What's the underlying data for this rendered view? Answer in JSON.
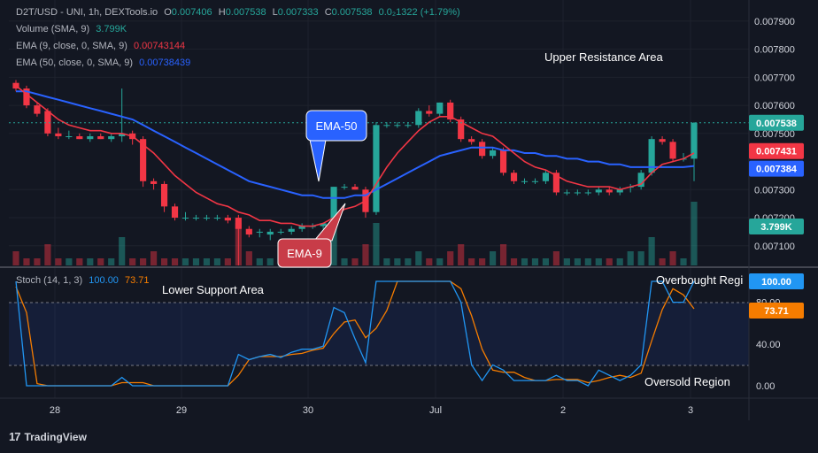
{
  "header": {
    "symbol": "D2T/USD - UNI, 1h, DEXTools.io",
    "o_label": "O",
    "o": "0.007406",
    "h_label": "H",
    "h": "0.007538",
    "l_label": "L",
    "l": "0.007333",
    "c_label": "C",
    "c": "0.007538",
    "change": "0.0₂1322 (+1.79%)"
  },
  "indicators": {
    "volume": {
      "label": "Volume (SMA, 9)",
      "value": "3.799K"
    },
    "ema9": {
      "label": "EMA (9, close, 0, SMA, 9)",
      "value": "0.00743144"
    },
    "ema50": {
      "label": "EMA (50, close, 0, SMA, 9)",
      "value": "0.00738439"
    }
  },
  "stoch": {
    "label": "Stoch (14, 1, 3)",
    "k": "100.00",
    "d": "73.71"
  },
  "annotations": {
    "upper": "Upper Resistance Area",
    "lower": "Lower Support Area",
    "overbought": "Overbought Regi",
    "oversold": "Oversold Region",
    "ema50_callout": "EMA-50",
    "ema9_callout": "EMA-9"
  },
  "colors": {
    "background": "#131722",
    "up": "#26a69a",
    "down": "#f23645",
    "ema9": "#f23645",
    "ema50": "#2962ff",
    "stoch_k": "#2196f3",
    "stoch_d": "#f57c00",
    "tag_price": "#26a69a",
    "tag_ema9": "#f23645",
    "tag_ema50": "#2962ff",
    "tag_volume": "#26a69a"
  },
  "brand": "TradingView",
  "chart_data": [
    {
      "type": "candlestick",
      "x_labels": [
        "28",
        "29",
        "30",
        "Jul",
        "2",
        "3"
      ],
      "y_ticks": [
        "0.007900",
        "0.007800",
        "0.007700",
        "0.007600",
        "0.007500",
        "0.007300",
        "0.007200",
        "0.007100"
      ],
      "y_range": [
        0.00703,
        0.00795
      ],
      "price_tags": {
        "last": "0.007538",
        "ema9": "0.007431",
        "ema50": "0.007384",
        "volume": "3.799K"
      },
      "candles": [
        {
          "o": 0.00768,
          "h": 0.00769,
          "l": 0.00765,
          "c": 0.00766
        },
        {
          "o": 0.00766,
          "h": 0.00767,
          "l": 0.00759,
          "c": 0.0076
        },
        {
          "o": 0.0076,
          "h": 0.00761,
          "l": 0.00756,
          "c": 0.00757
        },
        {
          "o": 0.00758,
          "h": 0.00759,
          "l": 0.00749,
          "c": 0.0075
        },
        {
          "o": 0.0075,
          "h": 0.00752,
          "l": 0.00748,
          "c": 0.00749
        },
        {
          "o": 0.00749,
          "h": 0.00751,
          "l": 0.00748,
          "c": 0.00749
        },
        {
          "o": 0.00749,
          "h": 0.0075,
          "l": 0.00748,
          "c": 0.00748
        },
        {
          "o": 0.00748,
          "h": 0.0075,
          "l": 0.00747,
          "c": 0.00749
        },
        {
          "o": 0.00749,
          "h": 0.0075,
          "l": 0.00748,
          "c": 0.00748
        },
        {
          "o": 0.00748,
          "h": 0.0075,
          "l": 0.00747,
          "c": 0.00749
        },
        {
          "o": 0.00749,
          "h": 0.00766,
          "l": 0.00747,
          "c": 0.0075
        },
        {
          "o": 0.0075,
          "h": 0.00751,
          "l": 0.00746,
          "c": 0.00748
        },
        {
          "o": 0.00748,
          "h": 0.00749,
          "l": 0.00731,
          "c": 0.00733
        },
        {
          "o": 0.00733,
          "h": 0.00734,
          "l": 0.0073,
          "c": 0.00732
        },
        {
          "o": 0.00732,
          "h": 0.00733,
          "l": 0.00722,
          "c": 0.00724
        },
        {
          "o": 0.00724,
          "h": 0.00725,
          "l": 0.00719,
          "c": 0.0072
        },
        {
          "o": 0.0072,
          "h": 0.00722,
          "l": 0.00719,
          "c": 0.0072
        },
        {
          "o": 0.0072,
          "h": 0.00721,
          "l": 0.00719,
          "c": 0.0072
        },
        {
          "o": 0.0072,
          "h": 0.00721,
          "l": 0.00719,
          "c": 0.0072
        },
        {
          "o": 0.0072,
          "h": 0.00721,
          "l": 0.00719,
          "c": 0.0072
        },
        {
          "o": 0.0072,
          "h": 0.00721,
          "l": 0.00718,
          "c": 0.00719
        },
        {
          "o": 0.0072,
          "h": 0.00721,
          "l": 0.00703,
          "c": 0.00716
        },
        {
          "o": 0.00716,
          "h": 0.00717,
          "l": 0.00713,
          "c": 0.00714
        },
        {
          "o": 0.00715,
          "h": 0.00716,
          "l": 0.00713,
          "c": 0.00715
        },
        {
          "o": 0.00714,
          "h": 0.00716,
          "l": 0.00712,
          "c": 0.00715
        },
        {
          "o": 0.00715,
          "h": 0.00716,
          "l": 0.00714,
          "c": 0.00715
        },
        {
          "o": 0.00715,
          "h": 0.00717,
          "l": 0.00714,
          "c": 0.00716
        },
        {
          "o": 0.00716,
          "h": 0.00718,
          "l": 0.00715,
          "c": 0.00717
        },
        {
          "o": 0.00717,
          "h": 0.00718,
          "l": 0.00716,
          "c": 0.00717
        },
        {
          "o": 0.00717,
          "h": 0.00718,
          "l": 0.00716,
          "c": 0.00718
        },
        {
          "o": 0.00718,
          "h": 0.00731,
          "l": 0.00717,
          "c": 0.00731
        },
        {
          "o": 0.00731,
          "h": 0.00732,
          "l": 0.0073,
          "c": 0.00731
        },
        {
          "o": 0.00731,
          "h": 0.00732,
          "l": 0.0073,
          "c": 0.0073
        },
        {
          "o": 0.0073,
          "h": 0.00731,
          "l": 0.0072,
          "c": 0.00722
        },
        {
          "o": 0.00722,
          "h": 0.00754,
          "l": 0.00721,
          "c": 0.00753
        },
        {
          "o": 0.00753,
          "h": 0.00754,
          "l": 0.00752,
          "c": 0.00753
        },
        {
          "o": 0.00753,
          "h": 0.00754,
          "l": 0.00752,
          "c": 0.00753
        },
        {
          "o": 0.00753,
          "h": 0.00754,
          "l": 0.00752,
          "c": 0.00753
        },
        {
          "o": 0.00753,
          "h": 0.00759,
          "l": 0.00752,
          "c": 0.00758
        },
        {
          "o": 0.00758,
          "h": 0.0076,
          "l": 0.00756,
          "c": 0.00757
        },
        {
          "o": 0.00757,
          "h": 0.00761,
          "l": 0.00756,
          "c": 0.00761
        },
        {
          "o": 0.00761,
          "h": 0.00762,
          "l": 0.00754,
          "c": 0.00755
        },
        {
          "o": 0.00755,
          "h": 0.00756,
          "l": 0.00747,
          "c": 0.00748
        },
        {
          "o": 0.00748,
          "h": 0.00749,
          "l": 0.00746,
          "c": 0.00747
        },
        {
          "o": 0.00747,
          "h": 0.00748,
          "l": 0.00741,
          "c": 0.00742
        },
        {
          "o": 0.00742,
          "h": 0.00745,
          "l": 0.00741,
          "c": 0.00744
        },
        {
          "o": 0.00744,
          "h": 0.00745,
          "l": 0.00735,
          "c": 0.00736
        },
        {
          "o": 0.00736,
          "h": 0.00737,
          "l": 0.00732,
          "c": 0.00733
        },
        {
          "o": 0.00733,
          "h": 0.00734,
          "l": 0.00732,
          "c": 0.00733
        },
        {
          "o": 0.00733,
          "h": 0.00734,
          "l": 0.00732,
          "c": 0.00733
        },
        {
          "o": 0.00733,
          "h": 0.00737,
          "l": 0.00732,
          "c": 0.00736
        },
        {
          "o": 0.00736,
          "h": 0.00737,
          "l": 0.00728,
          "c": 0.00729
        },
        {
          "o": 0.00729,
          "h": 0.0073,
          "l": 0.00728,
          "c": 0.00729
        },
        {
          "o": 0.00729,
          "h": 0.0073,
          "l": 0.00728,
          "c": 0.00729
        },
        {
          "o": 0.00729,
          "h": 0.0073,
          "l": 0.00728,
          "c": 0.00729
        },
        {
          "o": 0.00729,
          "h": 0.00731,
          "l": 0.00728,
          "c": 0.0073
        },
        {
          "o": 0.0073,
          "h": 0.00731,
          "l": 0.00728,
          "c": 0.00729
        },
        {
          "o": 0.00729,
          "h": 0.00731,
          "l": 0.00728,
          "c": 0.0073
        },
        {
          "o": 0.00731,
          "h": 0.00732,
          "l": 0.00729,
          "c": 0.00731
        },
        {
          "o": 0.00731,
          "h": 0.00737,
          "l": 0.0073,
          "c": 0.00736
        },
        {
          "o": 0.00736,
          "h": 0.00749,
          "l": 0.00735,
          "c": 0.00748
        },
        {
          "o": 0.00748,
          "h": 0.00749,
          "l": 0.00746,
          "c": 0.00747
        },
        {
          "o": 0.00747,
          "h": 0.00748,
          "l": 0.0074,
          "c": 0.00741
        },
        {
          "o": 0.00741,
          "h": 0.00743,
          "l": 0.0074,
          "c": 0.00741
        },
        {
          "o": 0.00741,
          "h": 0.00754,
          "l": 0.00733,
          "c": 0.007538
        }
      ],
      "ema9": [
        0.00767,
        0.00764,
        0.00761,
        0.00758,
        0.00755,
        0.00753,
        0.00752,
        0.00751,
        0.00751,
        0.0075,
        0.0075,
        0.00749,
        0.00746,
        0.00743,
        0.00739,
        0.00735,
        0.00732,
        0.00729,
        0.00727,
        0.00725,
        0.00724,
        0.00722,
        0.00721,
        0.00719,
        0.00719,
        0.00718,
        0.00718,
        0.00717,
        0.00717,
        0.00718,
        0.0072,
        0.00723,
        0.00724,
        0.00726,
        0.00732,
        0.00738,
        0.00743,
        0.00747,
        0.00751,
        0.00754,
        0.00756,
        0.00756,
        0.00754,
        0.00752,
        0.0075,
        0.00749,
        0.00746,
        0.00743,
        0.0074,
        0.00738,
        0.00737,
        0.00735,
        0.00733,
        0.00732,
        0.00731,
        0.00731,
        0.00731,
        0.0073,
        0.00731,
        0.00732,
        0.00736,
        0.00739,
        0.0074,
        0.00741,
        0.00743
      ],
      "ema50": [
        0.00765,
        0.00765,
        0.00764,
        0.00763,
        0.00762,
        0.00761,
        0.0076,
        0.00759,
        0.00758,
        0.00757,
        0.00756,
        0.00755,
        0.00753,
        0.00751,
        0.00749,
        0.00747,
        0.00745,
        0.00743,
        0.00741,
        0.00739,
        0.00737,
        0.00735,
        0.00733,
        0.00732,
        0.00731,
        0.0073,
        0.00729,
        0.00728,
        0.00728,
        0.00727,
        0.00727,
        0.00727,
        0.00728,
        0.00728,
        0.0073,
        0.00732,
        0.00734,
        0.00736,
        0.00738,
        0.0074,
        0.00742,
        0.00743,
        0.00744,
        0.00745,
        0.00745,
        0.00745,
        0.00744,
        0.00744,
        0.00743,
        0.00743,
        0.00742,
        0.00742,
        0.00741,
        0.00741,
        0.0074,
        0.0074,
        0.00739,
        0.00739,
        0.00738,
        0.00738,
        0.00738,
        0.00738,
        0.00738,
        0.00738,
        0.007384
      ],
      "volume": [
        2,
        1,
        1,
        3,
        1,
        1,
        1,
        1,
        1,
        1,
        4,
        1,
        1,
        2,
        1,
        1,
        1,
        1,
        1,
        1,
        1,
        6,
        2,
        1,
        1,
        1,
        1,
        1,
        1,
        1,
        8,
        1,
        1,
        3,
        6,
        1,
        1,
        1,
        2,
        1,
        1,
        2,
        3,
        1,
        1,
        2,
        3,
        1,
        1,
        1,
        1,
        2,
        1,
        1,
        1,
        1,
        1,
        1,
        2,
        2,
        4,
        1,
        2,
        1,
        9
      ]
    },
    {
      "type": "line",
      "name": "Stoch (14, 1, 3)",
      "y_ticks": [
        "0.00",
        "40.00",
        "80.00"
      ],
      "y_range": [
        0,
        100
      ],
      "bands": [
        20,
        80
      ],
      "price_tags": {
        "k": "100.00",
        "d": "73.71"
      },
      "k": [
        100,
        0,
        0,
        0,
        0,
        0,
        0,
        0,
        0,
        0,
        8,
        0,
        0,
        0,
        0,
        0,
        0,
        0,
        0,
        0,
        0,
        30,
        25,
        28,
        30,
        27,
        32,
        35,
        35,
        38,
        75,
        70,
        45,
        22,
        100,
        100,
        100,
        100,
        100,
        100,
        100,
        100,
        80,
        20,
        5,
        20,
        15,
        5,
        5,
        5,
        5,
        10,
        5,
        5,
        0,
        15,
        10,
        5,
        10,
        20,
        100,
        100,
        80,
        80,
        100
      ],
      "d": [
        95,
        70,
        2,
        0,
        0,
        0,
        0,
        0,
        0,
        0,
        3,
        3,
        3,
        0,
        0,
        0,
        0,
        0,
        0,
        0,
        0,
        10,
        25,
        28,
        28,
        28,
        30,
        31,
        34,
        36,
        50,
        61,
        63,
        46,
        55,
        72,
        100,
        100,
        100,
        100,
        100,
        100,
        93,
        67,
        35,
        15,
        13,
        13,
        8,
        5,
        5,
        6,
        6,
        6,
        3,
        5,
        8,
        10,
        8,
        12,
        43,
        73,
        93,
        87,
        73.71
      ]
    }
  ]
}
